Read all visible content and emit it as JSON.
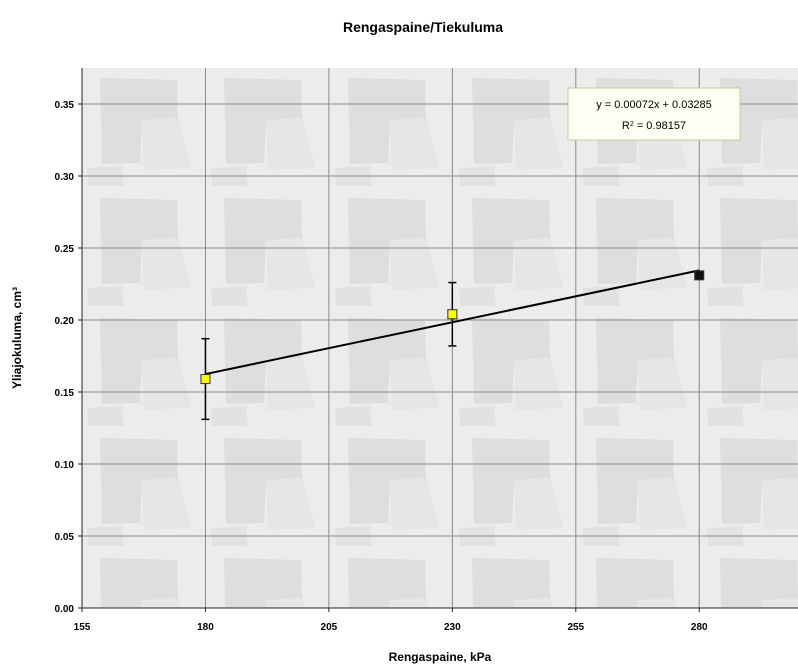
{
  "chart_data": {
    "type": "scatter",
    "title": "Rengaspaine/Tiekuluma",
    "xlabel": "Rengaspaine, kPa",
    "ylabel": "Yliajokuluma, cm³",
    "xlim": [
      155,
      300
    ],
    "ylim": [
      0.0,
      0.375
    ],
    "xticks": [
      "155",
      "180",
      "205",
      "230",
      "255",
      "280"
    ],
    "xtick_values": [
      155,
      180,
      205,
      230,
      255,
      280
    ],
    "yticks": [
      "0.00",
      "0.05",
      "0.10",
      "0.15",
      "0.20",
      "0.25",
      "0.30",
      "0.35"
    ],
    "ytick_values": [
      0.0,
      0.05,
      0.1,
      0.15,
      0.2,
      0.25,
      0.3,
      0.35
    ],
    "grid": true,
    "series": [
      {
        "points": [
          {
            "x": 180,
            "y": 0.159,
            "err_low": 0.131,
            "err_high": 0.187,
            "color": "#ffff00"
          },
          {
            "x": 230,
            "y": 0.204,
            "err_low": 0.182,
            "err_high": 0.226,
            "color": "#ffff00"
          },
          {
            "x": 280,
            "y": 0.231,
            "err_low": null,
            "err_high": null,
            "color": "#111111"
          }
        ]
      }
    ],
    "trendline": {
      "type": "linear",
      "slope": 0.00072,
      "intercept": 0.03285,
      "x_range": [
        180,
        280
      ],
      "equation_label": "y = 0.00072x + 0.03285",
      "r2_label": "R",
      "r2_sup": "2",
      "r2_value": " = 0.98157"
    }
  }
}
